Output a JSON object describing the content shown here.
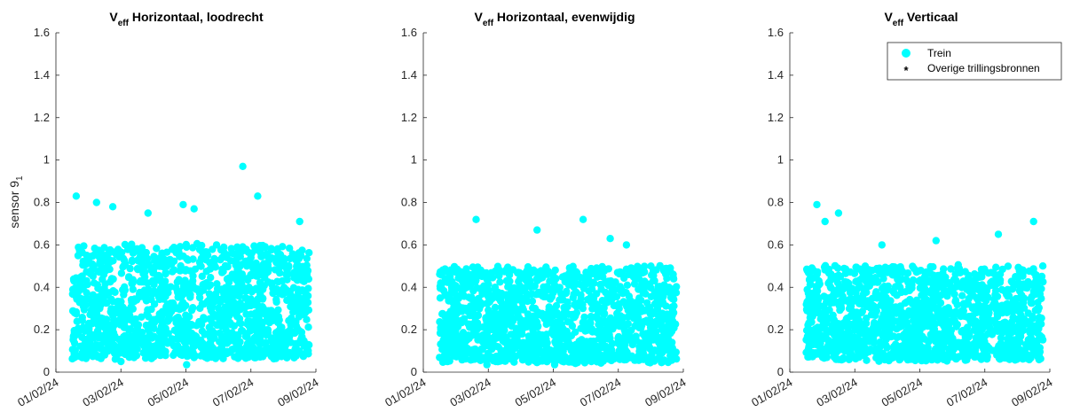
{
  "chart_data": {
    "type": "scatter",
    "shared": {
      "x_ticks": [
        "01/02/24",
        "03/02/24",
        "05/02/24",
        "07/02/24",
        "09/02/24"
      ],
      "y_ticks": [
        "0",
        "0.2",
        "0.4",
        "0.6",
        "0.8",
        "1",
        "1.2",
        "1.4",
        "1.6"
      ],
      "ylim": [
        0,
        1.6
      ],
      "xlim": [
        "01/02/24",
        "09/02/24"
      ],
      "ylabel": "sensor 9",
      "ylabel_subscript": "1",
      "marker_color": "#00ffff",
      "legend": {
        "placement": "top-right of third panel",
        "entries": [
          {
            "name": "Trein",
            "marker": "filled-circle",
            "color": "#00ffff"
          },
          {
            "name": "Overige trillingsbronnen",
            "marker": "asterisk",
            "color": "#000000"
          }
        ]
      }
    },
    "panels": [
      {
        "title_main": "V",
        "title_sub": "eff",
        "title_rest": " Horizontaal, loodrecht",
        "data_start": "01/02/24 12:00",
        "data_end": "08/02/24 19:00",
        "approx_points": 1400,
        "band_min": 0.07,
        "band_typical_max": 0.6,
        "highlighted_points": [
          {
            "x": "01/02/24 15:00",
            "y": 0.83
          },
          {
            "x": "02/02/24 06:00",
            "y": 0.8
          },
          {
            "x": "02/02/24 18:00",
            "y": 0.78
          },
          {
            "x": "03/02/24 20:00",
            "y": 0.75
          },
          {
            "x": "04/02/24 22:00",
            "y": 0.79
          },
          {
            "x": "05/02/24 06:00",
            "y": 0.77
          },
          {
            "x": "05/02/24 00:30",
            "y": 0.035
          },
          {
            "x": "06/02/24 18:00",
            "y": 0.97
          },
          {
            "x": "07/02/24 05:00",
            "y": 0.83
          },
          {
            "x": "03/02/24 00:00",
            "y": 0.05
          },
          {
            "x": "08/02/24 12:00",
            "y": 0.71
          }
        ]
      },
      {
        "title_main": "V",
        "title_sub": "eff",
        "title_rest": " Horizontaal, evenwijdig",
        "data_start": "01/02/24 12:00",
        "data_end": "08/02/24 19:00",
        "approx_points": 1400,
        "band_min": 0.05,
        "band_typical_max": 0.5,
        "highlighted_points": [
          {
            "x": "02/02/24 15:00",
            "y": 0.72
          },
          {
            "x": "04/02/24 12:00",
            "y": 0.67
          },
          {
            "x": "05/02/24 22:00",
            "y": 0.72
          },
          {
            "x": "02/02/24 23:00",
            "y": 0.035
          },
          {
            "x": "05/02/24 01:00",
            "y": 0.035
          },
          {
            "x": "06/02/24 18:00",
            "y": 0.63
          },
          {
            "x": "07/02/24 06:00",
            "y": 0.6
          }
        ]
      },
      {
        "title_main": "V",
        "title_sub": "eff",
        "title_rest": " Verticaal",
        "data_start": "01/02/24 12:00",
        "data_end": "08/02/24 19:00",
        "approx_points": 1400,
        "band_min": 0.06,
        "band_typical_max": 0.5,
        "highlighted_points": [
          {
            "x": "01/02/24 20:00",
            "y": 0.79
          },
          {
            "x": "02/02/24 12:00",
            "y": 0.75
          },
          {
            "x": "02/02/24 02:00",
            "y": 0.71
          },
          {
            "x": "08/02/24 12:00",
            "y": 0.71
          },
          {
            "x": "05/02/24 12:00",
            "y": 0.62
          },
          {
            "x": "07/02/24 10:00",
            "y": 0.65
          },
          {
            "x": "03/02/24 20:00",
            "y": 0.6
          }
        ]
      }
    ]
  }
}
